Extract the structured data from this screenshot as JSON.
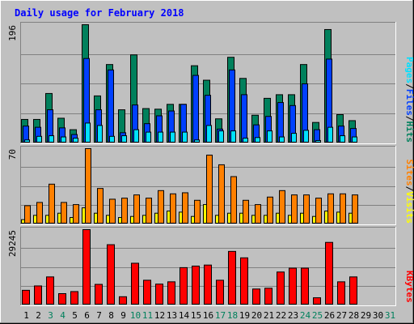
{
  "colors": {
    "background": "#c0c0c0",
    "panel": "#c0c0c0",
    "hits": "#00805c",
    "files": "#0040ff",
    "pages": "#00e0ff",
    "visits": "#ffff00",
    "sites": "#ff8000",
    "kbytes": "#ff0000",
    "title": "#0000ff",
    "weekend_day": "#00805c",
    "weekday": "#000000"
  },
  "chart_data": [
    {
      "type": "bar",
      "title": "Daily usage for February 2018",
      "ylabel_parts": [
        "Pages",
        "/",
        "Files",
        "/",
        "Hits"
      ],
      "ymax_label": "196",
      "ymax": 196,
      "categories": [
        "1",
        "2",
        "3",
        "4",
        "5",
        "6",
        "7",
        "8",
        "9",
        "10",
        "11",
        "12",
        "13",
        "14",
        "15",
        "16",
        "17",
        "18",
        "19",
        "20",
        "21",
        "22",
        "23",
        "24",
        "25",
        "26",
        "27",
        "28",
        "29",
        "30",
        "31"
      ],
      "weekend_days": [
        "3",
        "4",
        "10",
        "11",
        "17",
        "18",
        "24",
        "25",
        "31"
      ],
      "series": [
        {
          "name": "Hits",
          "values": [
            39,
            39,
            82,
            41,
            22,
            196,
            78,
            130,
            55,
            146,
            57,
            56,
            64,
            64,
            128,
            104,
            40,
            142,
            107,
            46,
            74,
            80,
            80,
            130,
            34,
            188,
            47,
            37,
            0,
            0,
            0
          ]
        },
        {
          "name": "Files",
          "values": [
            28,
            26,
            55,
            25,
            14,
            140,
            55,
            121,
            17,
            63,
            32,
            45,
            53,
            64,
            112,
            79,
            23,
            121,
            80,
            30,
            44,
            67,
            62,
            98,
            22,
            139,
            28,
            24,
            0,
            0,
            0
          ]
        },
        {
          "name": "Pages",
          "values": [
            5,
            11,
            12,
            10,
            8,
            33,
            29,
            11,
            12,
            22,
            18,
            18,
            18,
            18,
            5,
            29,
            20,
            20,
            8,
            9,
            20,
            10,
            16,
            21,
            4,
            26,
            12,
            10,
            0,
            0,
            0
          ]
        }
      ]
    },
    {
      "type": "bar",
      "ylabel_parts": [
        "Sites",
        "/",
        "Visits"
      ],
      "ymax_label": "70",
      "ymax": 70,
      "categories": [
        "1",
        "2",
        "3",
        "4",
        "5",
        "6",
        "7",
        "8",
        "9",
        "10",
        "11",
        "12",
        "13",
        "14",
        "15",
        "16",
        "17",
        "18",
        "19",
        "20",
        "21",
        "22",
        "23",
        "24",
        "25",
        "26",
        "27",
        "28",
        "29",
        "30",
        "31"
      ],
      "series": [
        {
          "name": "Visits",
          "values": [
            4,
            8,
            8,
            10,
            6,
            15,
            10,
            8,
            6,
            7,
            8,
            10,
            12,
            11,
            7,
            18,
            8,
            10,
            10,
            8,
            8,
            10,
            8,
            10,
            7,
            12,
            11,
            10,
            0,
            0,
            0
          ]
        },
        {
          "name": "Sites",
          "values": [
            17,
            20,
            37,
            20,
            18,
            70,
            33,
            23,
            24,
            27,
            24,
            31,
            28,
            29,
            22,
            64,
            55,
            44,
            22,
            18,
            25,
            31,
            27,
            27,
            24,
            28,
            28,
            27,
            0,
            0,
            0
          ]
        }
      ]
    },
    {
      "type": "bar",
      "ylabel": "KBytes",
      "ymax_label": "29245",
      "ymax": 29245,
      "categories": [
        "1",
        "2",
        "3",
        "4",
        "5",
        "6",
        "7",
        "8",
        "9",
        "10",
        "11",
        "12",
        "13",
        "14",
        "15",
        "16",
        "17",
        "18",
        "19",
        "20",
        "21",
        "22",
        "23",
        "24",
        "25",
        "26",
        "27",
        "28",
        "29",
        "30",
        "31"
      ],
      "series": [
        {
          "name": "KBytes",
          "values": [
            5700,
            7400,
            10900,
            4400,
            5200,
            29245,
            8000,
            23400,
            3200,
            16200,
            9600,
            8100,
            9000,
            14500,
            15100,
            15500,
            9600,
            20800,
            18300,
            6200,
            6500,
            12800,
            14300,
            14300,
            2800,
            24300,
            9000,
            10900,
            0,
            0,
            0
          ]
        }
      ]
    }
  ]
}
